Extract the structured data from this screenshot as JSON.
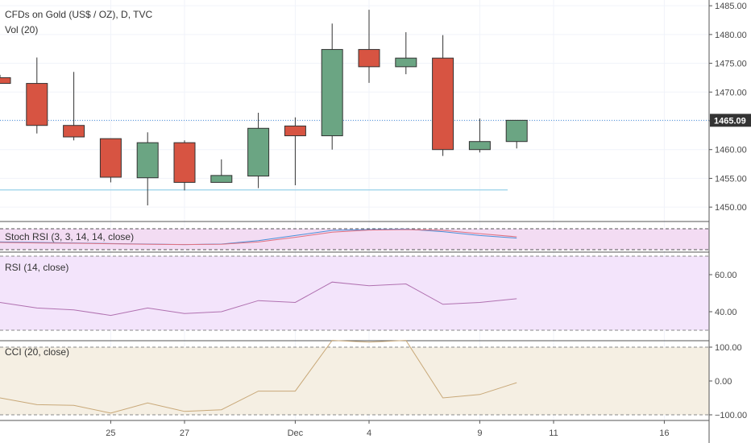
{
  "header": {
    "title": "CFDs on Gold (US$ / OZ), D, TVC",
    "volume": "Vol (20)"
  },
  "colors": {
    "up": "#6ba583",
    "down": "#d75442",
    "background": "#ffffff",
    "grid": "#f0f3fa",
    "stoch_band": "#f3dcf3",
    "rsi_band": "#f3e4fb",
    "cci_band": "#f5efe3",
    "stoch_line_k": "#4a90d9",
    "stoch_line_d": "#e07080",
    "rsi_line": "#b071b0",
    "cci_line": "#c8a878",
    "price_label_bg": "#333333"
  },
  "price_axis": {
    "ticks": [
      "1485.00",
      "1480.00",
      "1475.00",
      "1470.00",
      "1465.00",
      "1460.00",
      "1455.00",
      "1450.00"
    ],
    "tick_values": [
      1485,
      1480,
      1475,
      1470,
      1465,
      1460,
      1455,
      1450
    ],
    "last_price": 1465.09,
    "last_price_label": "1465.09"
  },
  "date_axis": {
    "labels": [
      "25",
      "27",
      "Dec",
      "4",
      "9",
      "11",
      "16"
    ],
    "label_bar_index": [
      3,
      5,
      8,
      10,
      13,
      15,
      18
    ]
  },
  "panels": {
    "stoch": {
      "label": "Stoch RSI (3, 3, 14, 14, close)"
    },
    "rsi": {
      "label": "RSI (14, close)",
      "ticks": [
        "60.00",
        "40.00"
      ],
      "tick_values": [
        60,
        40
      ]
    },
    "cci": {
      "label": "CCI (20, close)",
      "ticks": [
        "100.00",
        "0.00",
        "−100.00"
      ],
      "tick_values": [
        100,
        0,
        -100
      ]
    }
  },
  "chart_data": {
    "type": "candlestick",
    "title": "CFDs on Gold (US$ / OZ), D, TVC",
    "ylim": [
      1447.5,
      1486
    ],
    "horizontal_levels": [
      1465.09,
      1453
    ],
    "candles": [
      {
        "index": 0,
        "open": 1472.5,
        "high": 1473,
        "low": 1471.5,
        "close": 1471.5
      },
      {
        "index": 1,
        "open": 1471.5,
        "high": 1476,
        "low": 1462.8,
        "close": 1464.2
      },
      {
        "index": 2,
        "open": 1464.2,
        "high": 1473.5,
        "low": 1461.6,
        "close": 1462.2
      },
      {
        "index": 3,
        "open": 1461.9,
        "high": 1461.9,
        "low": 1454.3,
        "close": 1455.2
      },
      {
        "index": 4,
        "open": 1455.1,
        "high": 1463.0,
        "low": 1450.3,
        "close": 1461.2
      },
      {
        "index": 5,
        "open": 1461.2,
        "high": 1461.6,
        "low": 1452.9,
        "close": 1454.3
      },
      {
        "index": 6,
        "open": 1454.3,
        "high": 1458.3,
        "low": 1454.3,
        "close": 1455.5
      },
      {
        "index": 7,
        "open": 1455.4,
        "high": 1466.4,
        "low": 1453.3,
        "close": 1463.7
      },
      {
        "index": 8,
        "open": 1464.1,
        "high": 1465.6,
        "low": 1453.8,
        "close": 1462.4
      },
      {
        "index": 9,
        "open": 1462.4,
        "high": 1481.9,
        "low": 1460.0,
        "close": 1477.4
      },
      {
        "index": 10,
        "open": 1477.4,
        "high": 1484.3,
        "low": 1471.6,
        "close": 1474.4
      },
      {
        "index": 11,
        "open": 1474.4,
        "high": 1480.4,
        "low": 1473.1,
        "close": 1475.9
      },
      {
        "index": 12,
        "open": 1475.9,
        "high": 1479.9,
        "low": 1458.9,
        "close": 1460.0
      },
      {
        "index": 13,
        "open": 1460.0,
        "high": 1465.4,
        "low": 1459.5,
        "close": 1461.4
      },
      {
        "index": 14,
        "open": 1461.4,
        "high": 1465.1,
        "low": 1460.2,
        "close": 1465.09
      }
    ],
    "stoch_k": [
      30,
      28,
      26,
      24,
      22,
      20,
      22,
      35,
      55,
      75,
      78,
      80,
      70,
      55,
      45
    ],
    "stoch_d": [
      28,
      26,
      25,
      23,
      21,
      20,
      21,
      30,
      48,
      68,
      76,
      78,
      75,
      62,
      50
    ],
    "rsi": [
      45,
      42,
      41,
      38,
      42,
      39,
      40,
      46,
      45,
      56,
      54,
      55,
      44,
      45,
      47
    ],
    "cci": [
      -50,
      -70,
      -72,
      -95,
      -65,
      -90,
      -85,
      -30,
      -30,
      120,
      115,
      120,
      -50,
      -40,
      -5
    ]
  }
}
